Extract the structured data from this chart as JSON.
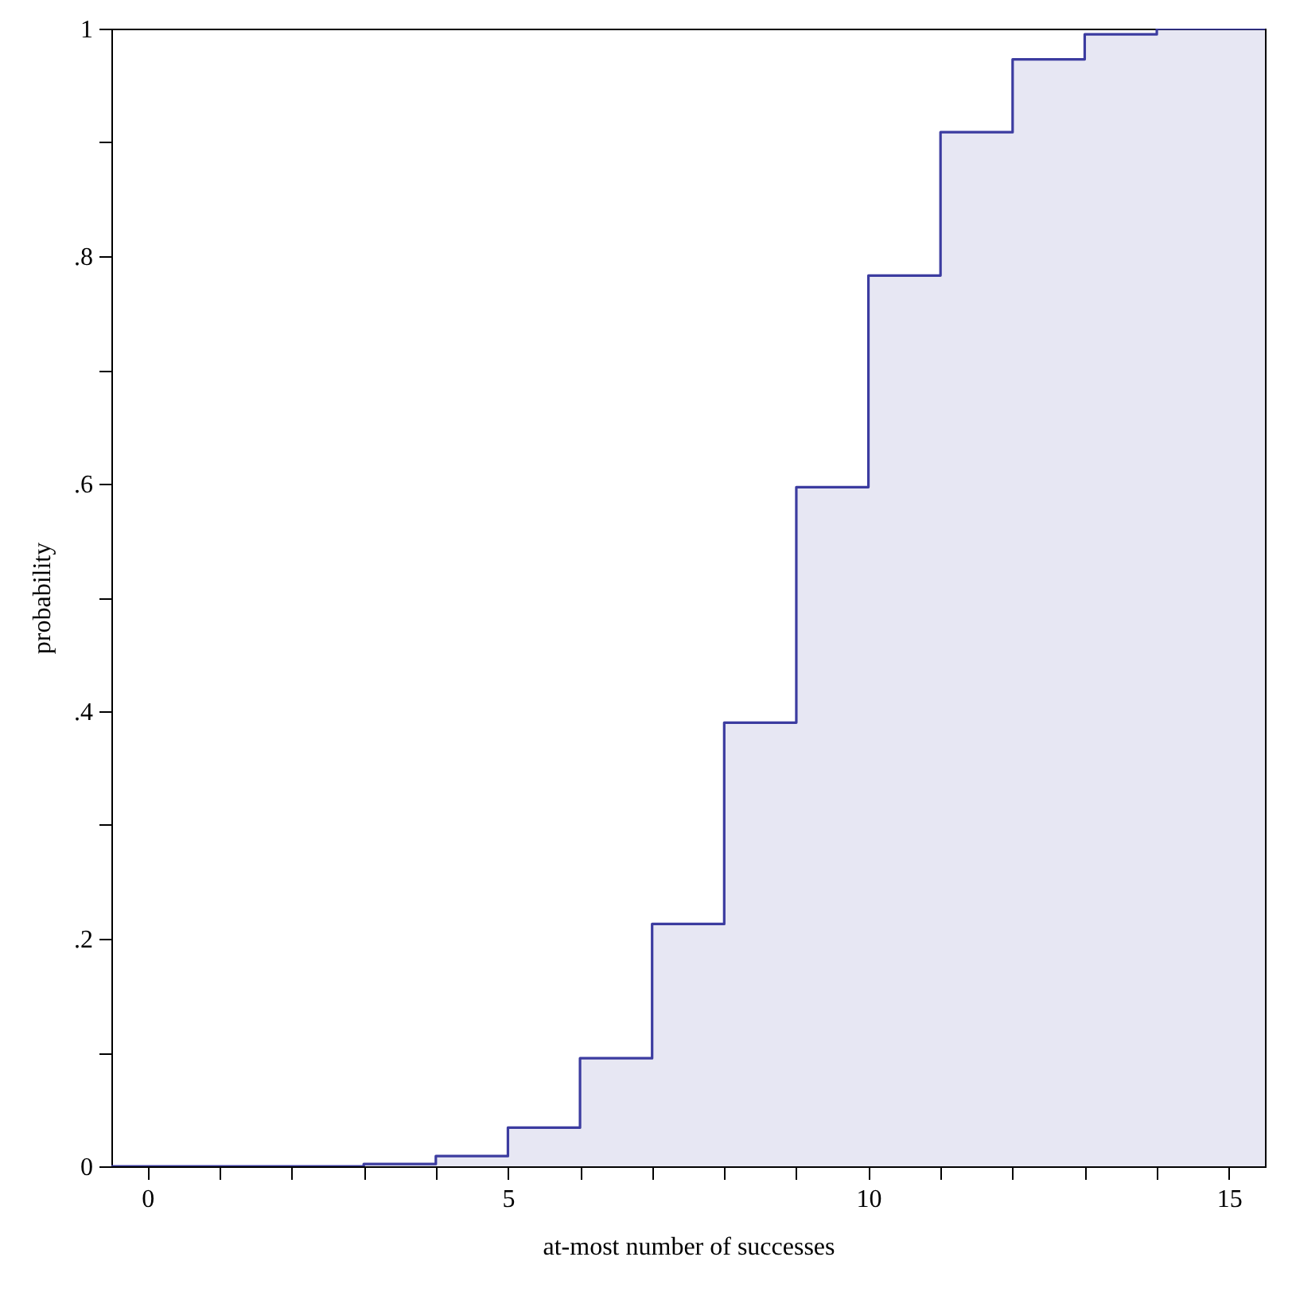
{
  "chart_data": {
    "type": "step",
    "xlabel": "at-most number of successes",
    "ylabel": "probability",
    "x": [
      -0.5,
      0,
      1,
      2,
      3,
      4,
      5,
      6,
      7,
      8,
      9,
      10,
      11,
      12,
      13,
      14,
      15,
      15.5
    ],
    "series": [
      {
        "color": "#3c3ca0",
        "values": [
          0,
          0,
          0,
          0,
          0.002,
          0.009,
          0.034,
          0.095,
          0.213,
          0.39,
          0.597,
          0.783,
          0.909,
          0.973,
          0.995,
          1,
          1,
          1
        ]
      }
    ],
    "xlim": [
      -0.5,
      15.5
    ],
    "ylim": [
      0,
      1
    ],
    "xticks": [
      0,
      {
        "value": 1,
        "label": null
      },
      {
        "value": 2,
        "label": null
      },
      {
        "value": 3,
        "label": null
      },
      {
        "value": 4,
        "label": null
      },
      5,
      {
        "value": 6,
        "label": null
      },
      {
        "value": 7,
        "label": null
      },
      {
        "value": 8,
        "label": null
      },
      {
        "value": 9,
        "label": null
      },
      10,
      {
        "value": 11,
        "label": null
      },
      {
        "value": 12,
        "label": null
      },
      {
        "value": 13,
        "label": null
      },
      {
        "value": 14,
        "label": null
      },
      15
    ],
    "yticks": [
      0,
      {
        "value": 0.1,
        "label": null
      },
      {
        "value": 0.2,
        "label": ".2"
      },
      {
        "value": 0.3,
        "label": null
      },
      {
        "value": 0.4,
        "label": ".4"
      },
      {
        "value": 0.5,
        "label": null
      },
      {
        "value": 0.6,
        "label": ".6"
      },
      {
        "value": 0.7,
        "label": null
      },
      {
        "value": 0.8,
        "label": ".8"
      },
      {
        "value": 0.9,
        "label": null
      },
      1
    ],
    "grid": false,
    "marker": "none",
    "line_style": "solid"
  }
}
